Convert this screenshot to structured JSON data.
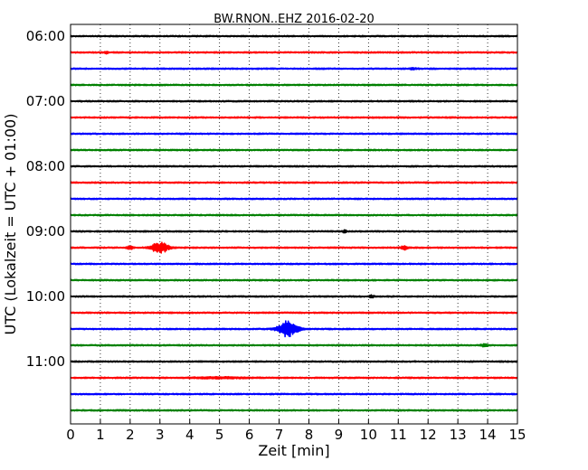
{
  "chart_data": {
    "type": "line",
    "title": "BW.RNON..EHZ 2016-02-20",
    "xlabel": "Zeit  [min]",
    "ylabel": "UTC (Lokalzeit = UTC + 01:00)",
    "xlim": [
      0,
      15
    ],
    "x_ticks": [
      "0",
      "1",
      "2",
      "3",
      "4",
      "5",
      "6",
      "7",
      "8",
      "9",
      "10",
      "11",
      "12",
      "13",
      "14",
      "15"
    ],
    "row_interval_min": 15,
    "start_time": "06:00",
    "hour_labels": [
      "06:00",
      "07:00",
      "08:00",
      "09:00",
      "10:00",
      "11:00"
    ],
    "rows": 24,
    "color_cycle": [
      "#000000",
      "#ff0000",
      "#0000ff",
      "#008000"
    ],
    "grid": "vertical-dotted",
    "noise_amplitude": 0.08,
    "events": [
      {
        "row_start": "06:15",
        "minute": 1.2,
        "amplitude": 0.22,
        "duration_min": 0.2
      },
      {
        "row_start": "06:30",
        "minute": 11.5,
        "amplitude": 0.15,
        "duration_min": 0.4
      },
      {
        "row_start": "09:00",
        "minute": 9.2,
        "amplitude": 0.25,
        "duration_min": 0.15
      },
      {
        "row_start": "09:15",
        "minute": 2.0,
        "amplitude": 0.35,
        "duration_min": 0.3
      },
      {
        "row_start": "09:15",
        "minute": 3.0,
        "amplitude": 1.05,
        "duration_min": 0.9
      },
      {
        "row_start": "09:15",
        "minute": 11.2,
        "amplitude": 0.4,
        "duration_min": 0.3
      },
      {
        "row_start": "10:00",
        "minute": 10.1,
        "amplitude": 0.3,
        "duration_min": 0.2
      },
      {
        "row_start": "10:30",
        "minute": 7.3,
        "amplitude": 1.5,
        "duration_min": 1.0
      },
      {
        "row_start": "10:45",
        "minute": 13.9,
        "amplitude": 0.3,
        "duration_min": 0.3
      },
      {
        "row_start": "11:15",
        "minute": 5.0,
        "amplitude": 0.12,
        "duration_min": 3.0
      }
    ]
  }
}
